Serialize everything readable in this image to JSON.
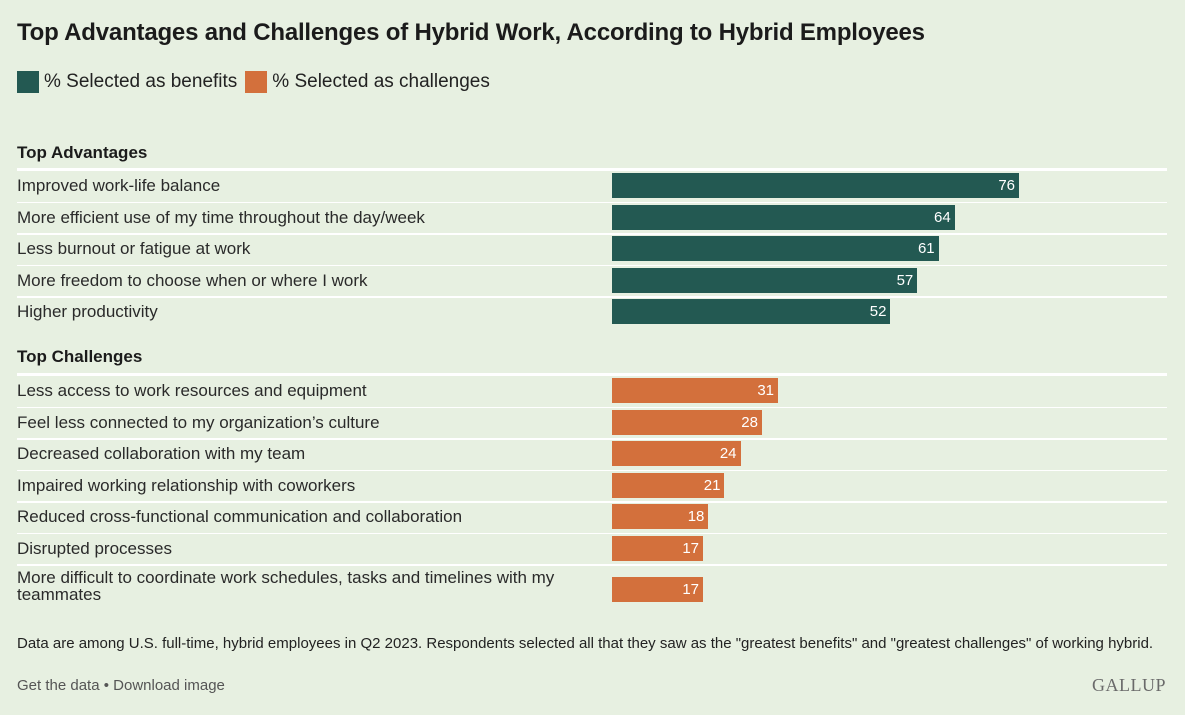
{
  "title": "Top Advantages and Challenges of Hybrid Work, According to Hybrid Employees",
  "legend": {
    "benefits_label": "% Selected as benefits",
    "challenges_label": "% Selected as challenges"
  },
  "colors": {
    "benefits": "#235952",
    "challenges": "#d3703c"
  },
  "chart_data": {
    "type": "bar",
    "orientation": "horizontal",
    "xlim": [
      0,
      100
    ],
    "grid": false,
    "legend_position": "top-left",
    "groups": [
      {
        "title": "Top Advantages",
        "series": "% Selected as benefits",
        "categories": [
          "Improved work-life balance",
          "More efficient use of my time throughout the day/week",
          "Less burnout or fatigue at work",
          "More freedom to choose when or where I work",
          "Higher productivity"
        ],
        "values": [
          76,
          64,
          61,
          57,
          52
        ]
      },
      {
        "title": "Top Challenges",
        "series": "% Selected as challenges",
        "categories": [
          "Less access to work resources and equipment",
          "Feel less connected to my organization’s culture",
          "Decreased collaboration with my team",
          "Impaired working relationship with coworkers",
          "Reduced cross-functional communication and collaboration",
          "Disrupted processes",
          "More difficult to coordinate work schedules, tasks and timelines with my teammates"
        ],
        "values": [
          31,
          28,
          24,
          21,
          18,
          17,
          17
        ]
      }
    ]
  },
  "footnote": "Data are among U.S. full-time, hybrid employees in Q2 2023. Respondents selected all that they saw as the \"greatest benefits\" and \"greatest challenges\" of working hybrid.",
  "links": {
    "get_data": "Get the data",
    "separator": " • ",
    "download": "Download image"
  },
  "brand": "GALLUP"
}
